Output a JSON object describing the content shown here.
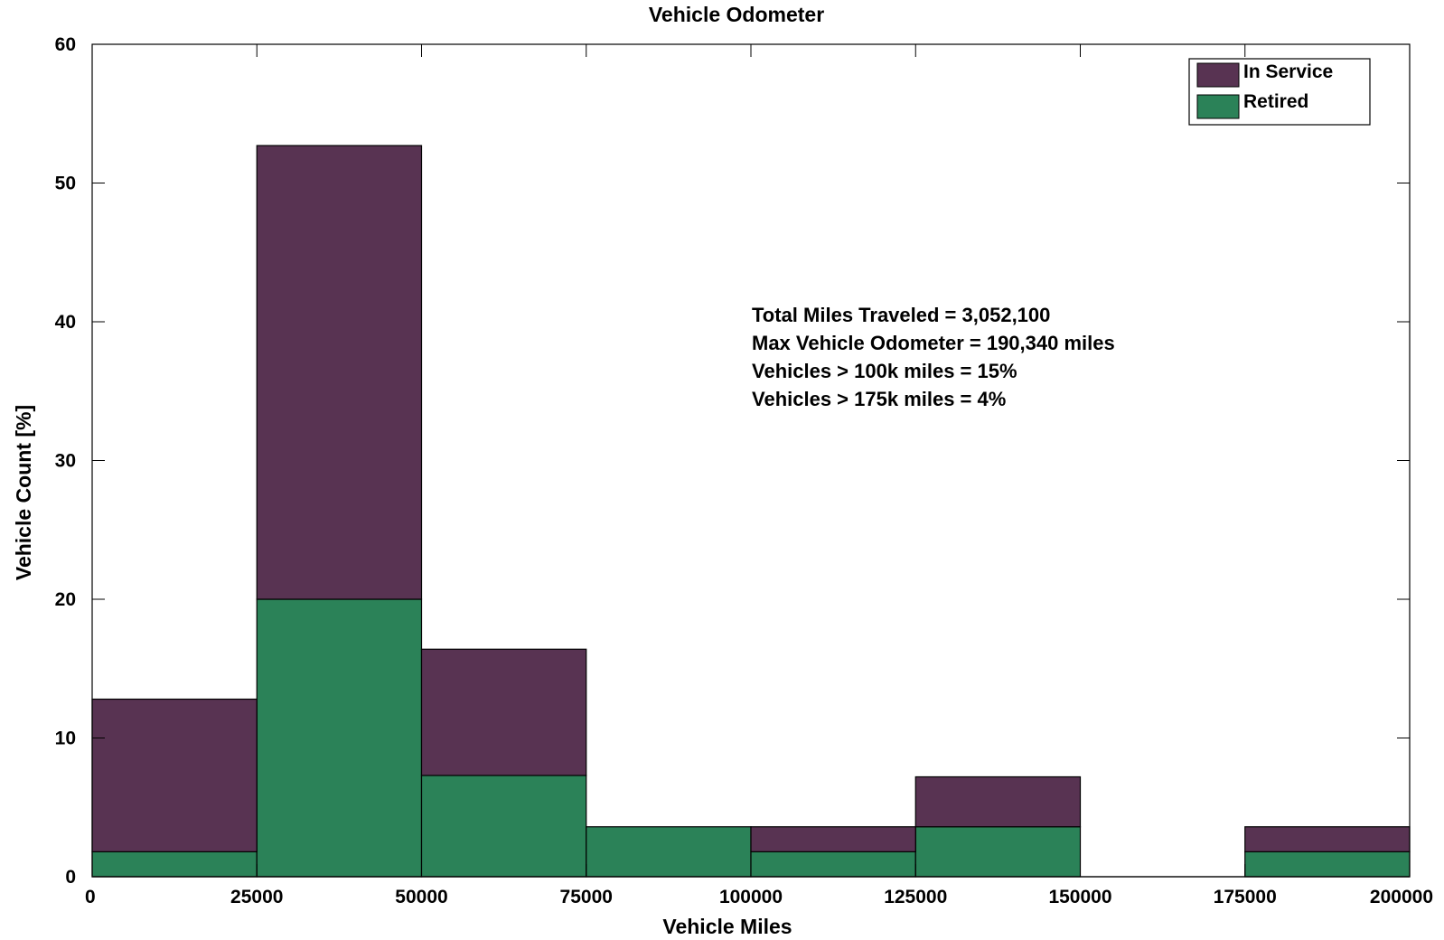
{
  "chart_data": {
    "type": "bar",
    "stacked": true,
    "title": "Vehicle Odometer",
    "xlabel": "Vehicle Miles",
    "ylabel": "Vehicle Count [%]",
    "xlim": [
      0,
      200000
    ],
    "ylim": [
      0,
      60
    ],
    "xticks": [
      0,
      25000,
      50000,
      75000,
      100000,
      125000,
      150000,
      175000,
      200000
    ],
    "yticks": [
      0,
      10,
      20,
      30,
      40,
      50,
      60
    ],
    "bin_edges": [
      0,
      25000,
      50000,
      75000,
      100000,
      125000,
      150000,
      175000,
      200000
    ],
    "series": [
      {
        "name": "Retired",
        "color": "#2b8258",
        "values": [
          1.8,
          20.0,
          7.3,
          3.6,
          1.8,
          3.6,
          0,
          1.8
        ]
      },
      {
        "name": "In Service",
        "color": "#583352",
        "values": [
          11.0,
          32.7,
          9.1,
          0,
          1.8,
          3.6,
          0,
          1.8
        ]
      }
    ],
    "legend": {
      "placement": "top-right",
      "entries": [
        {
          "label": "In Service",
          "color": "#583352"
        },
        {
          "label": "Retired",
          "color": "#2b8258"
        }
      ]
    },
    "annotations": [
      "Total Miles Traveled = 3,052,100",
      "Max Vehicle Odometer = 190,340 miles",
      "Vehicles > 100k miles = 15%",
      "Vehicles > 175k miles = 4%"
    ],
    "grid": false
  }
}
